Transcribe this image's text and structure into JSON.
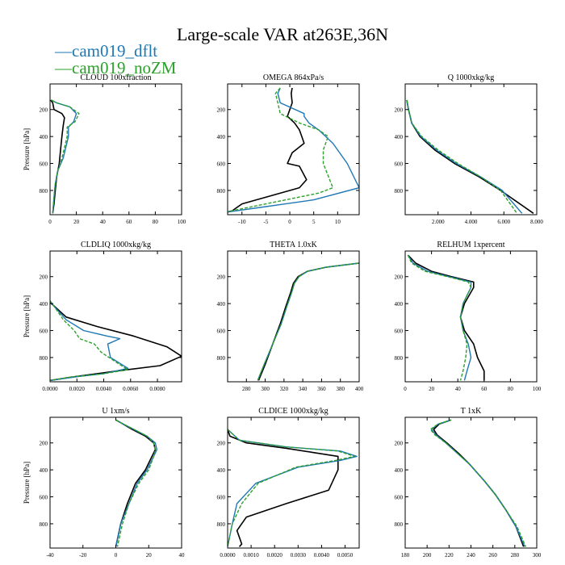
{
  "figure": {
    "title": "Large-scale VAR at263E,36N",
    "legend": [
      {
        "label": "cam019_dflt",
        "color": "#1f77b4"
      },
      {
        "label": "cam019_noZM",
        "color": "#2ca02c"
      }
    ],
    "reference_color": "#000000"
  },
  "chart_data": [
    {
      "type": "line",
      "title": "CLOUD  100xfraction",
      "ylabel": "Pressure [hPa]",
      "xlabel": "",
      "xlim": [
        0,
        100
      ],
      "ylim": [
        980,
        10
      ],
      "xticks": [
        0,
        20,
        40,
        60,
        80,
        100
      ],
      "xtick_labels": [
        "0",
        "20",
        "40",
        "60",
        "80",
        "100"
      ],
      "yticks": [
        200,
        400,
        600,
        800
      ],
      "ytick_labels": [
        "200",
        "400",
        "600",
        "800"
      ],
      "series": [
        {
          "name": "black",
          "x": [
            0.5,
            2,
            3,
            9,
            11,
            10,
            9,
            8,
            7,
            5,
            4,
            3,
            2
          ],
          "y": [
            130,
            150,
            200,
            230,
            260,
            320,
            400,
            500,
            600,
            700,
            800,
            900,
            970
          ]
        },
        {
          "name": "cam019_dflt",
          "x": [
            1,
            5,
            15,
            20,
            18,
            14,
            14,
            10,
            6,
            4,
            3,
            2
          ],
          "y": [
            130,
            150,
            180,
            230,
            290,
            330,
            400,
            560,
            650,
            750,
            850,
            970
          ]
        },
        {
          "name": "cam019_noZM",
          "x": [
            1,
            5,
            15,
            22,
            19,
            13,
            13,
            9,
            6,
            4,
            3,
            2
          ],
          "y": [
            130,
            150,
            180,
            230,
            290,
            330,
            400,
            560,
            650,
            750,
            850,
            970
          ]
        }
      ]
    },
    {
      "type": "line",
      "title": "OMEGA  864xPa/s",
      "ylabel": "",
      "xlabel": "",
      "xlim": [
        -13,
        14.5
      ],
      "ylim": [
        980,
        10
      ],
      "xticks": [
        -10,
        -5,
        0,
        5,
        10
      ],
      "xtick_labels": [
        "-10",
        "-5",
        "0",
        "5",
        "10"
      ],
      "yticks": [
        200,
        400,
        600,
        800
      ],
      "ytick_labels": [
        "200",
        "400",
        "600",
        "800"
      ],
      "series": [
        {
          "name": "black",
          "x": [
            0.5,
            0.3,
            0.5,
            -0.5,
            1,
            2,
            2.5,
            3,
            0.5,
            -0.5,
            2,
            3.5,
            2,
            -10,
            -12,
            -13
          ],
          "y": [
            40,
            80,
            150,
            250,
            300,
            350,
            400,
            450,
            520,
            600,
            620,
            720,
            780,
            900,
            950,
            960
          ]
        },
        {
          "name": "cam019_dflt",
          "x": [
            -2,
            -2.5,
            -2,
            3,
            3,
            4,
            6,
            9,
            12,
            14.5,
            5,
            -5,
            -13
          ],
          "y": [
            40,
            80,
            150,
            230,
            250,
            300,
            350,
            450,
            600,
            780,
            870,
            920,
            960
          ]
        },
        {
          "name": "cam019_noZM",
          "x": [
            -2,
            -3,
            -2.5,
            -2,
            2,
            6,
            8,
            7,
            7,
            9,
            6,
            -5,
            -12,
            -13
          ],
          "y": [
            40,
            80,
            150,
            230,
            300,
            350,
            400,
            500,
            600,
            780,
            820,
            900,
            950,
            960
          ]
        }
      ]
    },
    {
      "type": "line",
      "title": "Q  1000xkg/kg",
      "ylabel": "",
      "xlabel": "",
      "xlim": [
        0,
        8
      ],
      "ylim": [
        980,
        10
      ],
      "xticks": [
        2,
        4,
        6,
        8
      ],
      "xtick_labels": [
        "2.000",
        "4.000",
        "6.000",
        "8.000"
      ],
      "yticks": [
        200,
        400,
        600,
        800
      ],
      "ytick_labels": [
        "200",
        "400",
        "600",
        "800"
      ],
      "series": [
        {
          "name": "black",
          "x": [
            0.1,
            0.2,
            0.4,
            0.9,
            1.8,
            3.0,
            4.5,
            5.8,
            7.8
          ],
          "y": [
            130,
            200,
            300,
            400,
            500,
            600,
            700,
            800,
            970
          ]
        },
        {
          "name": "cam019_dflt",
          "x": [
            0.1,
            0.2,
            0.4,
            0.95,
            1.9,
            3.1,
            4.6,
            5.9,
            7.1
          ],
          "y": [
            130,
            200,
            300,
            400,
            500,
            600,
            700,
            800,
            970
          ]
        },
        {
          "name": "cam019_noZM",
          "x": [
            0.1,
            0.2,
            0.4,
            1.0,
            2.0,
            3.2,
            4.6,
            5.8,
            6.8
          ],
          "y": [
            130,
            200,
            300,
            400,
            500,
            600,
            700,
            800,
            970
          ]
        }
      ]
    },
    {
      "type": "line",
      "title": "CLDLIQ  1000xkg/kg",
      "ylabel": "Pressure [hPa]",
      "xlabel": "",
      "xlim": [
        0,
        0.0098
      ],
      "ylim": [
        980,
        10
      ],
      "xticks": [
        0,
        0.002,
        0.004,
        0.006,
        0.008
      ],
      "xtick_labels": [
        "0.0000",
        "0.0020",
        "0.0040",
        "0.0060",
        "0.0080"
      ],
      "yticks": [
        200,
        400,
        600,
        800
      ],
      "ytick_labels": [
        "200",
        "400",
        "600",
        "800"
      ],
      "series": [
        {
          "name": "black",
          "x": [
            0,
            0.0001,
            0.0012,
            0.0035,
            0.0062,
            0.0087,
            0.0098,
            0.0082,
            0.005,
            0.002,
            0
          ],
          "y": [
            380,
            400,
            500,
            570,
            640,
            720,
            790,
            860,
            900,
            940,
            970
          ]
        },
        {
          "name": "cam019_dflt",
          "x": [
            0,
            0.0003,
            0.0012,
            0.0025,
            0.0042,
            0.0052,
            0.0043,
            0.0045,
            0.0058,
            0.004,
            0.0022,
            0
          ],
          "y": [
            380,
            420,
            520,
            600,
            640,
            660,
            700,
            800,
            880,
            920,
            940,
            970
          ]
        },
        {
          "name": "cam019_noZM",
          "x": [
            0,
            0.0003,
            0.001,
            0.0018,
            0.0022,
            0.0033,
            0.0038,
            0.005,
            0.0058,
            0.004,
            0.0015,
            0
          ],
          "y": [
            380,
            420,
            520,
            600,
            660,
            700,
            760,
            840,
            890,
            920,
            945,
            970
          ]
        }
      ]
    },
    {
      "type": "line",
      "title": "THETA  1.0xK",
      "ylabel": "",
      "xlabel": "",
      "xlim": [
        260,
        400
      ],
      "ylim": [
        980,
        10
      ],
      "xticks": [
        280,
        300,
        320,
        340,
        360,
        380,
        400
      ],
      "xtick_labels": [
        "280",
        "300",
        "320",
        "340",
        "360",
        "380",
        "400"
      ],
      "yticks": [
        200,
        400,
        600,
        800
      ],
      "ytick_labels": [
        "200",
        "400",
        "600",
        "800"
      ],
      "series": [
        {
          "name": "black",
          "x": [
            293,
            300,
            308,
            316,
            322,
            327,
            330,
            335,
            345,
            365,
            400
          ],
          "y": [
            970,
            850,
            700,
            550,
            420,
            320,
            250,
            200,
            160,
            130,
            100
          ]
        },
        {
          "name": "cam019_dflt",
          "x": [
            292,
            299,
            308,
            317,
            323,
            328,
            331,
            336,
            345,
            365,
            400
          ],
          "y": [
            970,
            850,
            700,
            550,
            420,
            320,
            250,
            200,
            160,
            130,
            100
          ]
        },
        {
          "name": "cam019_noZM",
          "x": [
            292,
            299,
            308,
            317,
            323,
            328,
            331,
            336,
            345,
            365,
            400
          ],
          "y": [
            970,
            850,
            700,
            550,
            420,
            320,
            250,
            200,
            160,
            130,
            100
          ]
        }
      ]
    },
    {
      "type": "line",
      "title": "RELHUM  1xpercent",
      "ylabel": "",
      "xlabel": "",
      "xlim": [
        0,
        100
      ],
      "ylim": [
        980,
        10
      ],
      "xticks": [
        0,
        20,
        40,
        60,
        80,
        100
      ],
      "xtick_labels": [
        "0",
        "20",
        "40",
        "60",
        "80",
        "100"
      ],
      "yticks": [
        200,
        400,
        600,
        800
      ],
      "ytick_labels": [
        "200",
        "400",
        "600",
        "800"
      ],
      "series": [
        {
          "name": "black",
          "x": [
            2,
            8,
            20,
            35,
            52,
            52,
            45,
            42,
            45,
            52,
            55,
            60,
            60
          ],
          "y": [
            40,
            100,
            160,
            200,
            240,
            280,
            400,
            500,
            600,
            700,
            800,
            900,
            970
          ]
        },
        {
          "name": "cam019_dflt",
          "x": [
            2,
            6,
            17,
            33,
            50,
            50,
            44,
            42,
            44,
            48,
            50,
            47,
            45
          ],
          "y": [
            40,
            100,
            160,
            200,
            240,
            280,
            400,
            500,
            600,
            700,
            800,
            900,
            970
          ]
        },
        {
          "name": "cam019_noZM",
          "x": [
            2,
            5,
            15,
            32,
            48,
            50,
            44,
            42,
            44,
            47,
            46,
            44,
            42
          ],
          "y": [
            40,
            100,
            160,
            200,
            240,
            280,
            400,
            500,
            600,
            700,
            800,
            900,
            970
          ]
        }
      ]
    },
    {
      "type": "line",
      "title": "U  1xm/s",
      "ylabel": "Pressure [hPa]",
      "xlabel": "",
      "xlim": [
        -40,
        40
      ],
      "ylim": [
        980,
        10
      ],
      "xticks": [
        -40,
        -20,
        0,
        20,
        40
      ],
      "xtick_labels": [
        "-40",
        "-20",
        "0",
        "20",
        "40"
      ],
      "yticks": [
        200,
        400,
        600,
        800
      ],
      "ytick_labels": [
        "200",
        "400",
        "600",
        "800"
      ],
      "series": [
        {
          "name": "black",
          "x": [
            0,
            3,
            10,
            18,
            23,
            24,
            22,
            18,
            12,
            7,
            3,
            0
          ],
          "y": [
            30,
            50,
            100,
            150,
            200,
            250,
            300,
            400,
            500,
            650,
            800,
            970
          ]
        },
        {
          "name": "cam019_dflt",
          "x": [
            0,
            3,
            11,
            19,
            24,
            25,
            23,
            19,
            13,
            8,
            3,
            0
          ],
          "y": [
            30,
            50,
            100,
            150,
            200,
            250,
            300,
            400,
            500,
            650,
            800,
            970
          ]
        },
        {
          "name": "cam019_noZM",
          "x": [
            0,
            3,
            11,
            19,
            23,
            24,
            23,
            20,
            14,
            8,
            4,
            1
          ],
          "y": [
            30,
            50,
            100,
            150,
            200,
            250,
            300,
            400,
            500,
            650,
            800,
            970
          ]
        }
      ]
    },
    {
      "type": "line",
      "title": "CLDICE  1000xkg/kg",
      "ylabel": "",
      "xlabel": "",
      "xlim": [
        0,
        0.0056
      ],
      "ylim": [
        980,
        10
      ],
      "xticks": [
        0,
        0.001,
        0.002,
        0.003,
        0.004,
        0.005
      ],
      "xtick_labels": [
        "0.0000",
        "0.0010",
        "0.0020",
        "0.0030",
        "0.0040",
        "0.0050"
      ],
      "yticks": [
        200,
        400,
        600,
        800
      ],
      "ytick_labels": [
        "200",
        "400",
        "600",
        "800"
      ],
      "series": [
        {
          "name": "black",
          "x": [
            0,
            0.0001,
            0.0008,
            0.0025,
            0.0036,
            0.0047,
            0.0047,
            0.0043,
            0.0025,
            0.0008,
            0.0004,
            0.0006,
            0.0005
          ],
          "y": [
            100,
            150,
            200,
            240,
            270,
            300,
            400,
            550,
            650,
            750,
            850,
            950,
            970
          ]
        },
        {
          "name": "cam019_dflt",
          "x": [
            0,
            0.0005,
            0.0025,
            0.0048,
            0.0055,
            0.0048,
            0.003,
            0.0012,
            0.0004,
            0.0002,
            0
          ],
          "y": [
            100,
            180,
            230,
            260,
            300,
            330,
            380,
            500,
            650,
            800,
            970
          ]
        },
        {
          "name": "cam019_noZM",
          "x": [
            0,
            0.0005,
            0.0025,
            0.0047,
            0.0054,
            0.0046,
            0.0029,
            0.0013,
            0.0006,
            0.0002,
            0
          ],
          "y": [
            100,
            180,
            230,
            260,
            300,
            330,
            380,
            500,
            650,
            800,
            970
          ]
        }
      ]
    },
    {
      "type": "line",
      "title": "T  1xK",
      "ylabel": "",
      "xlabel": "",
      "xlim": [
        180,
        300
      ],
      "ylim": [
        980,
        10
      ],
      "xticks": [
        180,
        200,
        220,
        240,
        260,
        280,
        300
      ],
      "xtick_labels": [
        "180",
        "200",
        "220",
        "240",
        "260",
        "280",
        "300"
      ],
      "yticks": [
        200,
        400,
        600,
        800
      ],
      "ytick_labels": [
        "200",
        "400",
        "600",
        "800"
      ],
      "series": [
        {
          "name": "black",
          "x": [
            222,
            211,
            206,
            209,
            218,
            229,
            239,
            252,
            262,
            272,
            281,
            288
          ],
          "y": [
            30,
            60,
            100,
            140,
            200,
            280,
            360,
            480,
            580,
            700,
            820,
            970
          ]
        },
        {
          "name": "cam019_dflt",
          "x": [
            222,
            210,
            204,
            208,
            217,
            228,
            239,
            252,
            262,
            272,
            281,
            289
          ],
          "y": [
            30,
            60,
            100,
            140,
            200,
            280,
            360,
            480,
            580,
            700,
            820,
            970
          ]
        },
        {
          "name": "cam019_noZM",
          "x": [
            222,
            210,
            203,
            207,
            217,
            228,
            239,
            252,
            262,
            272,
            282,
            290
          ],
          "y": [
            30,
            60,
            100,
            140,
            200,
            280,
            360,
            480,
            580,
            700,
            820,
            970
          ]
        }
      ]
    }
  ]
}
